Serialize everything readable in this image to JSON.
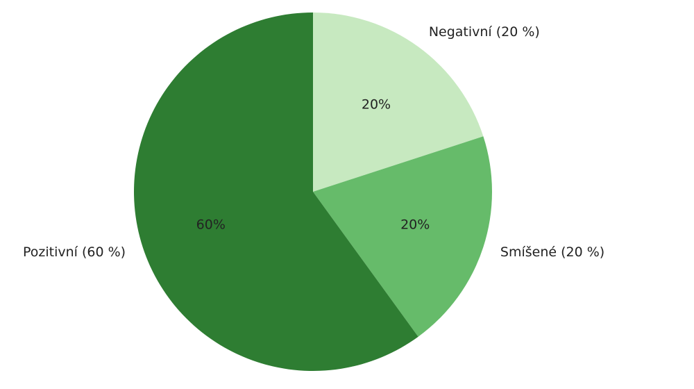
{
  "chart_data": {
    "type": "pie",
    "categories": [
      "Negativní (20 %)",
      "Smíšené (20 %)",
      "Pozitivní (60 %)"
    ],
    "values": [
      20,
      20,
      60
    ],
    "value_labels": [
      "20%",
      "20%",
      "60%"
    ],
    "colors": [
      "#c7e9c0",
      "#66bb6a",
      "#2e7d32"
    ],
    "start_angle": 90,
    "counterclockwise": false
  }
}
